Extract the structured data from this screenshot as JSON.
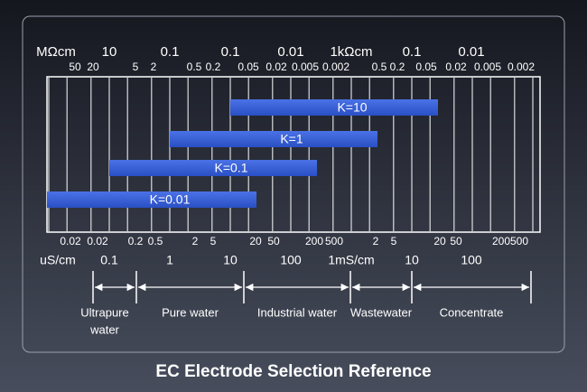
{
  "top_scale": {
    "row1": [
      "MΩcm",
      "10",
      "0.1",
      "0.1",
      "0.01",
      "1kΩcm",
      "0.1",
      "0.01"
    ],
    "row2": [
      "50",
      "20",
      "5",
      "2",
      "0.5",
      "0.2",
      "0.05",
      "0.02",
      "0.005",
      "0.002",
      "0.5",
      "0.2",
      "0.05",
      "0.02",
      "0.005",
      "0.002"
    ]
  },
  "bars": [
    {
      "label": "K=10"
    },
    {
      "label": "K=1"
    },
    {
      "label": "K=0.1"
    },
    {
      "label": "K=0.01"
    }
  ],
  "bottom_scale": {
    "row1": [
      "0.02",
      "0.02",
      "0.2",
      "0.5",
      "2",
      "5",
      "20",
      "50",
      "200",
      "500",
      "2",
      "5",
      "20",
      "50",
      "200500"
    ],
    "row2": [
      "uS/cm",
      "0.1",
      "1",
      "10",
      "100",
      "1mS/cm",
      "10",
      "100"
    ]
  },
  "ranges": [
    {
      "lines": [
        "Ultrapure",
        "water"
      ]
    },
    {
      "lines": [
        "Pure water"
      ]
    },
    {
      "lines": [
        "Industrial water"
      ]
    },
    {
      "lines": [
        "Wastewater"
      ]
    },
    {
      "lines": [
        "Concentrate"
      ]
    }
  ],
  "title": "EC Electrode Selection Reference"
}
